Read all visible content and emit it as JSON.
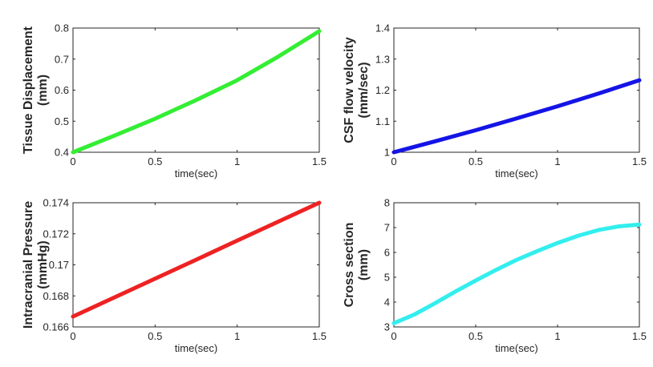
{
  "chart_data": [
    {
      "type": "line",
      "title": "",
      "xlabel": "time(sec)",
      "ylabel": [
        "Tissue Displacement",
        "(mm)"
      ],
      "xlim": [
        0,
        1.5
      ],
      "ylim": [
        0.4,
        0.8
      ],
      "xticks": [
        "0",
        "0.5",
        "1",
        "1.5"
      ],
      "yticks": [
        "0.4",
        "0.5",
        "0.6",
        "0.7",
        "0.8"
      ],
      "color": "#33ee33",
      "series": [
        {
          "name": "Tissue Displacement",
          "x": [
            0,
            0.25,
            0.5,
            0.75,
            1.0,
            1.25,
            1.5
          ],
          "y": [
            0.4,
            0.453,
            0.508,
            0.568,
            0.632,
            0.708,
            0.79
          ]
        }
      ]
    },
    {
      "type": "line",
      "title": "",
      "xlabel": "time(sec)",
      "ylabel": [
        "CSF flow velocity",
        "(mm/sec)"
      ],
      "xlim": [
        0,
        1.5
      ],
      "ylim": [
        1,
        1.4
      ],
      "xticks": [
        "0",
        "0.5",
        "1",
        "1.5"
      ],
      "yticks": [
        "1",
        "1.1",
        "1.2",
        "1.3",
        "1.4"
      ],
      "color": "#1414e6",
      "series": [
        {
          "name": "CSF flow velocity",
          "x": [
            0,
            0.25,
            0.5,
            0.75,
            1.0,
            1.25,
            1.5
          ],
          "y": [
            1.0,
            1.035,
            1.071,
            1.109,
            1.148,
            1.189,
            1.232
          ]
        }
      ]
    },
    {
      "type": "line",
      "title": "",
      "xlabel": "time(sec)",
      "ylabel": [
        "Intracranial Pressure",
        "(mmHg)"
      ],
      "xlim": [
        0,
        1.5
      ],
      "ylim": [
        0.166,
        0.174
      ],
      "xticks": [
        "0",
        "0.5",
        "1",
        "1.5"
      ],
      "yticks": [
        "0.166",
        "0.168",
        "0.17",
        "0.172",
        "0.174"
      ],
      "color": "#ee2222",
      "series": [
        {
          "name": "Intracranial Pressure",
          "x": [
            0,
            0.25,
            0.5,
            0.75,
            1.0,
            1.25,
            1.5
          ],
          "y": [
            0.16667,
            0.16789,
            0.16911,
            0.17033,
            0.17156,
            0.17278,
            0.174
          ]
        }
      ]
    },
    {
      "type": "line",
      "title": "",
      "xlabel": "time(sec)",
      "ylabel": [
        "Cross section",
        "(mm)"
      ],
      "xlim": [
        0,
        1.5
      ],
      "ylim": [
        3,
        8
      ],
      "xticks": [
        "0",
        "0.5",
        "1",
        "1.5"
      ],
      "yticks": [
        "3",
        "4",
        "5",
        "6",
        "7",
        "8"
      ],
      "color": "#33eeee",
      "series": [
        {
          "name": "Cross section",
          "x": [
            0,
            0.125,
            0.25,
            0.375,
            0.5,
            0.625,
            0.75,
            0.875,
            1.0,
            1.125,
            1.25,
            1.375,
            1.5
          ],
          "y": [
            3.15,
            3.5,
            3.95,
            4.42,
            4.87,
            5.3,
            5.7,
            6.05,
            6.38,
            6.67,
            6.9,
            7.05,
            7.12
          ]
        }
      ]
    }
  ]
}
